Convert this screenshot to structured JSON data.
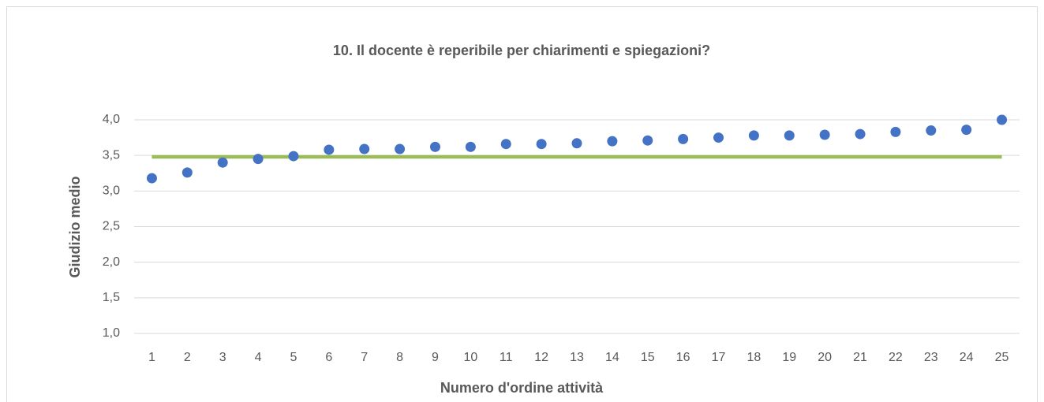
{
  "chart_data": {
    "type": "scatter",
    "title": "10. Il docente è reperibile per chiarimenti e spiegazioni?",
    "xlabel": "Numero d'ordine attività",
    "ylabel": "Giudizio medio",
    "categories": [
      "1",
      "2",
      "3",
      "4",
      "5",
      "6",
      "7",
      "8",
      "9",
      "10",
      "11",
      "12",
      "13",
      "14",
      "15",
      "16",
      "17",
      "18",
      "19",
      "20",
      "21",
      "22",
      "23",
      "24",
      "25"
    ],
    "series": [
      {
        "type": "scatter",
        "color": "#4472c4",
        "values": [
          3.18,
          3.26,
          3.4,
          3.45,
          3.49,
          3.58,
          3.59,
          3.59,
          3.62,
          3.62,
          3.66,
          3.66,
          3.67,
          3.7,
          3.71,
          3.73,
          3.75,
          3.78,
          3.78,
          3.79,
          3.8,
          3.83,
          3.85,
          3.86,
          4.0
        ]
      },
      {
        "type": "line",
        "color": "#9bbb59",
        "values": [
          3.48,
          3.48,
          3.48,
          3.48,
          3.48,
          3.48,
          3.48,
          3.48,
          3.48,
          3.48,
          3.48,
          3.48,
          3.48,
          3.48,
          3.48,
          3.48,
          3.48,
          3.48,
          3.48,
          3.48,
          3.48,
          3.48,
          3.48,
          3.48,
          3.48
        ]
      }
    ],
    "ylim": [
      1,
      4
    ],
    "yticks": [
      {
        "value": 1,
        "label": "1,0"
      },
      {
        "value": 1.5,
        "label": "1,5"
      },
      {
        "value": 2,
        "label": "2,0"
      },
      {
        "value": 2.5,
        "label": "2,5"
      },
      {
        "value": 3,
        "label": "3,0"
      },
      {
        "value": 3.5,
        "label": "3,5"
      },
      {
        "value": 4,
        "label": "4,0"
      }
    ],
    "grid": true
  }
}
